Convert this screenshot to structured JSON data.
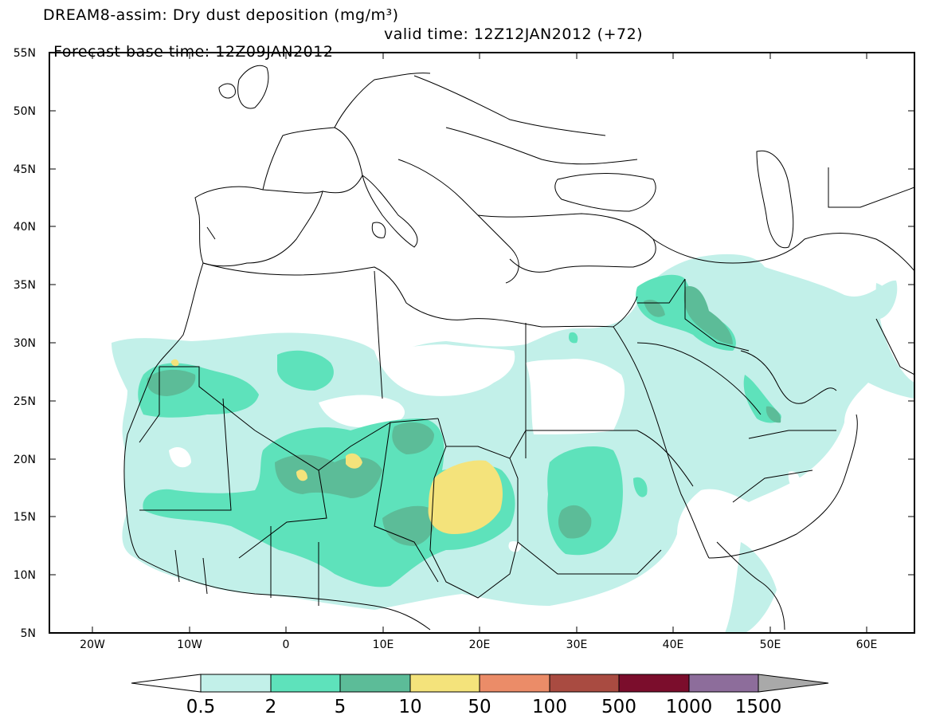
{
  "header": {
    "title_line1": "DREAM8-assim: Dry dust deposition (mg/m³)",
    "forecast_label": "Forecast base time: 12Z09JAN2012",
    "valid_label": "valid time: 12Z12JAN2012 (+72)"
  },
  "map": {
    "lat_labels": [
      "55N",
      "50N",
      "45N",
      "40N",
      "35N",
      "30N",
      "25N",
      "20N",
      "15N",
      "10N",
      "5N"
    ],
    "lon_labels": [
      "20W",
      "10W",
      "0",
      "10E",
      "20E",
      "30E",
      "40E",
      "50E",
      "60E"
    ]
  },
  "colorbar": {
    "labels": [
      "0.5",
      "2",
      "5",
      "10",
      "50",
      "100",
      "500",
      "1000",
      "1500"
    ],
    "colors": [
      "#c2f0e9",
      "#5ee2bb",
      "#5cbc98",
      "#f4e37b",
      "#eb8c68",
      "#a94b41",
      "#7b0d2c",
      "#8d6d9b",
      "#a9a9a9"
    ]
  }
}
